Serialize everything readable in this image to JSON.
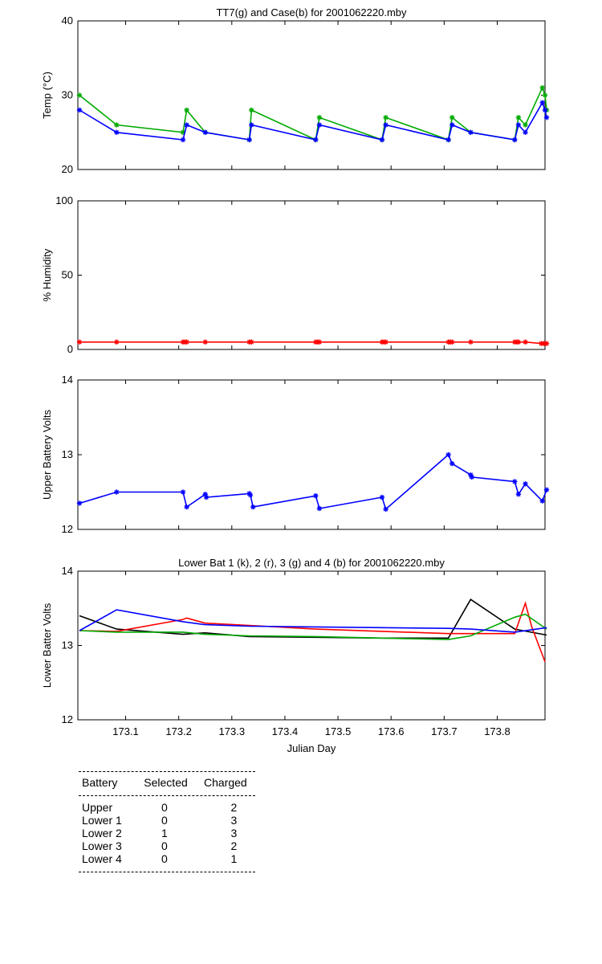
{
  "chart_data": [
    {
      "type": "line",
      "title": "TT7(g) and Case(b) for 2001062220.mby",
      "xlabel": "",
      "ylabel": "Temp  (°C)",
      "xlim": [
        173.01,
        173.89
      ],
      "ylim": [
        20,
        40
      ],
      "yticks": [
        20,
        30,
        40
      ],
      "yticklabels": [
        "20",
        "30",
        "40"
      ],
      "xticks": [
        173.1,
        173.2,
        173.3,
        173.4,
        173.5,
        173.6,
        173.7,
        173.8
      ],
      "xticklabels": [],
      "grid": false,
      "series": [
        {
          "color": "#00aa00",
          "marker": "star",
          "x": [
            173.013,
            173.083,
            173.208,
            173.215,
            173.25,
            173.333,
            173.337,
            173.458,
            173.465,
            173.583,
            173.59,
            173.708,
            173.715,
            173.75,
            173.833,
            173.84,
            173.853,
            173.885,
            173.89,
            173.893
          ],
          "y": [
            30,
            26,
            25,
            28,
            25,
            24,
            28,
            24,
            27,
            24,
            27,
            24,
            27,
            25,
            24,
            27,
            26,
            31,
            30,
            28
          ]
        },
        {
          "color": "#0000ff",
          "marker": "star",
          "x": [
            173.013,
            173.083,
            173.208,
            173.215,
            173.25,
            173.333,
            173.337,
            173.458,
            173.465,
            173.583,
            173.59,
            173.708,
            173.715,
            173.75,
            173.833,
            173.84,
            173.853,
            173.885,
            173.89,
            173.893
          ],
          "y": [
            28,
            25,
            24,
            26,
            25,
            24,
            26,
            24,
            26,
            24,
            26,
            24,
            26,
            25,
            24,
            26,
            25,
            29,
            28,
            27
          ]
        }
      ]
    },
    {
      "type": "line",
      "title": "",
      "xlabel": "",
      "ylabel": "% Humidity",
      "xlim": [
        173.01,
        173.89
      ],
      "ylim": [
        0,
        100
      ],
      "yticks": [
        0,
        50,
        100
      ],
      "yticklabels": [
        "0",
        "50",
        "100"
      ],
      "xticks": [
        173.1,
        173.2,
        173.3,
        173.4,
        173.5,
        173.6,
        173.7,
        173.8
      ],
      "xticklabels": [],
      "grid": false,
      "series": [
        {
          "color": "#ff0000",
          "marker": "star",
          "x": [
            173.013,
            173.083,
            173.208,
            173.212,
            173.215,
            173.25,
            173.333,
            173.337,
            173.458,
            173.462,
            173.465,
            173.583,
            173.587,
            173.59,
            173.708,
            173.712,
            173.715,
            173.75,
            173.833,
            173.837,
            173.84,
            173.853,
            173.883,
            173.888,
            173.893
          ],
          "y": [
            5,
            5,
            5,
            5,
            5,
            5,
            5,
            5,
            5,
            5,
            5,
            5,
            5,
            5,
            5,
            5,
            5,
            5,
            5,
            5,
            5,
            5,
            4,
            4,
            4
          ]
        }
      ]
    },
    {
      "type": "line",
      "title": "",
      "xlabel": "",
      "ylabel": "Upper Battery Volts",
      "xlim": [
        173.01,
        173.89
      ],
      "ylim": [
        12,
        14
      ],
      "yticks": [
        12,
        13,
        14
      ],
      "yticklabels": [
        "12",
        "13",
        "14"
      ],
      "xticks": [
        173.1,
        173.2,
        173.3,
        173.4,
        173.5,
        173.6,
        173.7,
        173.8
      ],
      "xticklabels": [],
      "grid": false,
      "series": [
        {
          "color": "#0000ff",
          "marker": "star",
          "x": [
            173.013,
            173.083,
            173.208,
            173.215,
            173.25,
            173.252,
            173.333,
            173.335,
            173.34,
            173.458,
            173.465,
            173.583,
            173.59,
            173.708,
            173.715,
            173.75,
            173.752,
            173.833,
            173.84,
            173.853,
            173.885,
            173.893
          ],
          "y": [
            12.35,
            12.5,
            12.5,
            12.3,
            12.47,
            12.43,
            12.48,
            12.46,
            12.3,
            12.45,
            12.28,
            12.43,
            12.27,
            13.0,
            12.88,
            12.73,
            12.7,
            12.64,
            12.47,
            12.61,
            12.38,
            12.53
          ]
        }
      ]
    },
    {
      "type": "line",
      "title": "Lower Bat 1 (k), 2 (r), 3 (g) and 4 (b) for 2001062220.mby",
      "xlabel": "Julian Day",
      "ylabel": "Lower Batter Volts",
      "xlim": [
        173.01,
        173.89
      ],
      "ylim": [
        12,
        14
      ],
      "yticks": [
        12,
        13,
        14
      ],
      "yticklabels": [
        "12",
        "13",
        "14"
      ],
      "xticks": [
        173.1,
        173.2,
        173.3,
        173.4,
        173.5,
        173.6,
        173.7,
        173.8
      ],
      "xticklabels": [
        "173.1",
        "173.2",
        "173.3",
        "173.4",
        "173.5",
        "173.6",
        "173.7",
        "173.8"
      ],
      "grid": false,
      "series": [
        {
          "color": "#000000",
          "x": [
            173.013,
            173.083,
            173.208,
            173.25,
            173.333,
            173.458,
            173.583,
            173.708,
            173.75,
            173.833,
            173.893
          ],
          "y": [
            13.4,
            13.22,
            13.15,
            13.17,
            13.12,
            13.11,
            13.1,
            13.1,
            13.62,
            13.22,
            13.14
          ]
        },
        {
          "color": "#ff0000",
          "x": [
            173.013,
            173.083,
            173.208,
            173.215,
            173.25,
            173.333,
            173.458,
            173.583,
            173.708,
            173.75,
            173.833,
            173.853,
            173.865,
            173.89
          ],
          "y": [
            13.2,
            13.19,
            13.35,
            13.37,
            13.3,
            13.27,
            13.22,
            13.19,
            13.16,
            13.16,
            13.16,
            13.57,
            13.25,
            12.78
          ]
        },
        {
          "color": "#00aa00",
          "x": [
            173.013,
            173.083,
            173.208,
            173.25,
            173.333,
            173.458,
            173.583,
            173.708,
            173.75,
            173.833,
            173.853,
            173.893
          ],
          "y": [
            13.2,
            13.18,
            13.18,
            13.15,
            13.13,
            13.12,
            13.1,
            13.08,
            13.13,
            13.38,
            13.42,
            13.22
          ]
        },
        {
          "color": "#0000ff",
          "x": [
            173.013,
            173.083,
            173.208,
            173.25,
            173.333,
            173.458,
            173.583,
            173.708,
            173.75,
            173.833,
            173.893
          ],
          "y": [
            13.2,
            13.48,
            13.32,
            13.28,
            13.26,
            13.25,
            13.24,
            13.23,
            13.22,
            13.18,
            13.24
          ]
        }
      ]
    }
  ],
  "table": {
    "headers": [
      "Battery",
      "Selected",
      "Charged"
    ],
    "rows": [
      [
        "Upper",
        "0",
        "2"
      ],
      [
        "Lower 1",
        "0",
        "3"
      ],
      [
        "Lower 2",
        "1",
        "3"
      ],
      [
        "Lower 3",
        "0",
        "2"
      ],
      [
        "Lower 4",
        "0",
        "1"
      ]
    ]
  }
}
